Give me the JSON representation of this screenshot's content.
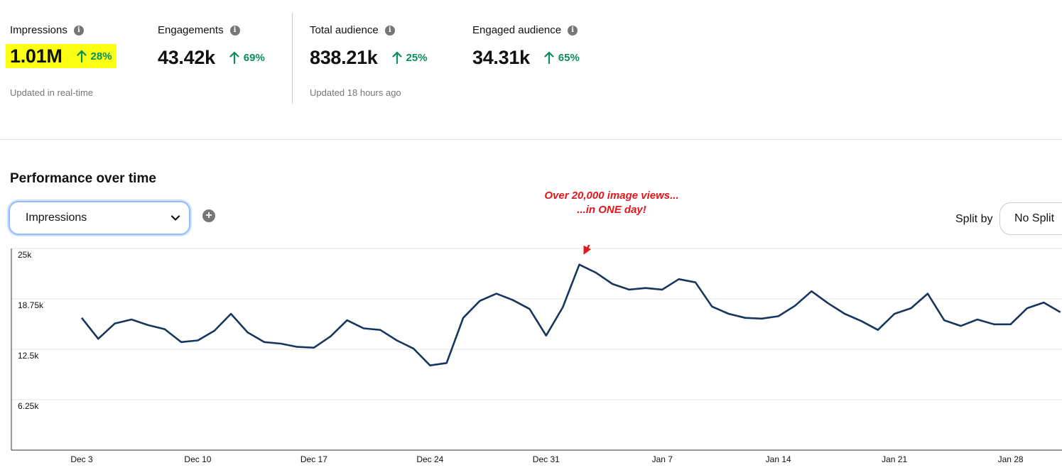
{
  "metrics": [
    {
      "label": "Impressions",
      "value": "1.01M",
      "change": "28%"
    },
    {
      "label": "Engagements",
      "value": "43.42k",
      "change": "69%"
    },
    {
      "label": "Total audience",
      "value": "838.21k",
      "change": "25%"
    },
    {
      "label": "Engaged audience",
      "value": "34.31k",
      "change": "65%"
    }
  ],
  "updated_realtime": "Updated in real-time",
  "updated_audience": "Updated 18 hours ago",
  "section_title": "Performance over time",
  "metric_select": {
    "value": "Impressions"
  },
  "split": {
    "label": "Split by",
    "value": "No Split"
  },
  "annotation": {
    "line1": "Over 20,000 image views...",
    "line2": "...in ONE day!"
  },
  "colors": {
    "highlight": "#fbff14",
    "positive": "#0a8f5a",
    "line": "#17365d",
    "annotation": "#e3161b"
  },
  "icons": {
    "info": "info-icon",
    "trend": "arrow-up-icon",
    "dropdown": "chevron-down-icon",
    "add": "plus-circle-icon"
  },
  "chart_data": {
    "type": "line",
    "title": "",
    "xlabel": "",
    "ylabel": "",
    "ylim": [
      0,
      25000
    ],
    "y_ticks": [
      6250,
      12500,
      18750,
      25000
    ],
    "y_tick_labels": [
      "6.25k",
      "12.5k",
      "18.75k",
      "25k"
    ],
    "x_start": "Dec 3",
    "x_ticks": [
      "Dec 3",
      "Dec 10",
      "Dec 17",
      "Dec 24",
      "Dec 31",
      "Jan 7",
      "Jan 14",
      "Jan 21",
      "Jan 28"
    ],
    "grid": true,
    "series": [
      {
        "name": "Impressions",
        "values": [
          16400,
          13800,
          15700,
          16200,
          15500,
          15000,
          13400,
          13600,
          14800,
          16900,
          14600,
          13400,
          13200,
          12800,
          12700,
          14100,
          16100,
          15100,
          14900,
          13600,
          12600,
          10500,
          10800,
          16400,
          18500,
          19400,
          18600,
          17500,
          14200,
          17700,
          23000,
          22000,
          20600,
          19900,
          20100,
          19900,
          21200,
          20800,
          17800,
          16900,
          16400,
          16300,
          16600,
          17900,
          19700,
          18200,
          16900,
          16000,
          14900,
          16900,
          17600,
          19400,
          16100,
          15400,
          16200,
          15600,
          15600,
          17600,
          18300,
          17100
        ]
      }
    ]
  }
}
